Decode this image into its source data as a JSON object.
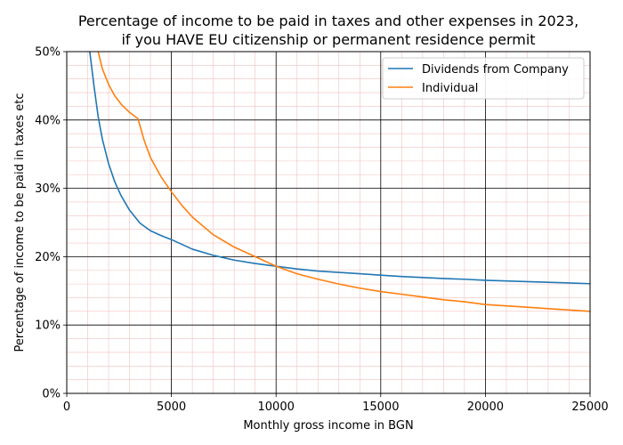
{
  "chart_data": {
    "type": "line",
    "title_line1": "Percentage of income to be paid in taxes and other expenses in 2023,",
    "title_line2": "if you HAVE EU citizenship or permanent residence permit",
    "xlabel": "Monthly gross income in BGN",
    "ylabel": "Percentage of income to be paid in taxes etc",
    "xlim": [
      0,
      25000
    ],
    "ylim": [
      0,
      50
    ],
    "x_ticks": [
      0,
      5000,
      10000,
      15000,
      20000,
      25000
    ],
    "x_tick_labels": [
      "0",
      "5000",
      "10000",
      "15000",
      "20000",
      "25000"
    ],
    "y_ticks": [
      0,
      10,
      20,
      30,
      40,
      50
    ],
    "y_tick_labels": [
      "0%",
      "10%",
      "20%",
      "30%",
      "40%",
      "50%"
    ],
    "grid": true,
    "minor_grid": true,
    "legend_position": "top-right",
    "series": [
      {
        "name": "Dividends from Company",
        "color": "#1f77b4",
        "x": [
          1100,
          1300,
          1500,
          1700,
          2000,
          2300,
          2600,
          3000,
          3500,
          4000,
          4500,
          5000,
          6000,
          7000,
          8000,
          9000,
          10000,
          11000,
          12000,
          13000,
          14000,
          15000,
          16000,
          17000,
          18000,
          19000,
          20000,
          21000,
          22000,
          23000,
          24000,
          25000
        ],
        "values": [
          50,
          45,
          40.5,
          37.2,
          33.6,
          30.9,
          28.9,
          26.8,
          24.9,
          23.8,
          23.1,
          22.5,
          21.1,
          20.2,
          19.5,
          19.0,
          18.6,
          18.2,
          17.9,
          17.7,
          17.5,
          17.3,
          17.1,
          16.95,
          16.8,
          16.7,
          16.55,
          16.45,
          16.35,
          16.25,
          16.15,
          16.05
        ]
      },
      {
        "name": "Individual",
        "color": "#ff7f0e",
        "x": [
          1500,
          1700,
          2000,
          2300,
          2600,
          3000,
          3400,
          3700,
          4000,
          4500,
          5000,
          5500,
          6000,
          7000,
          8000,
          9000,
          10000,
          11000,
          12000,
          13000,
          14000,
          15000,
          16000,
          17000,
          18000,
          19000,
          20000,
          21000,
          22000,
          23000,
          24000,
          25000
        ],
        "values": [
          50,
          47.5,
          45.2,
          43.5,
          42.3,
          41.1,
          40.2,
          37.0,
          34.5,
          31.7,
          29.5,
          27.5,
          25.8,
          23.2,
          21.4,
          20.0,
          18.6,
          17.5,
          16.7,
          16.0,
          15.4,
          14.9,
          14.5,
          14.1,
          13.7,
          13.4,
          13.0,
          12.8,
          12.6,
          12.4,
          12.2,
          12.0
        ]
      }
    ]
  }
}
